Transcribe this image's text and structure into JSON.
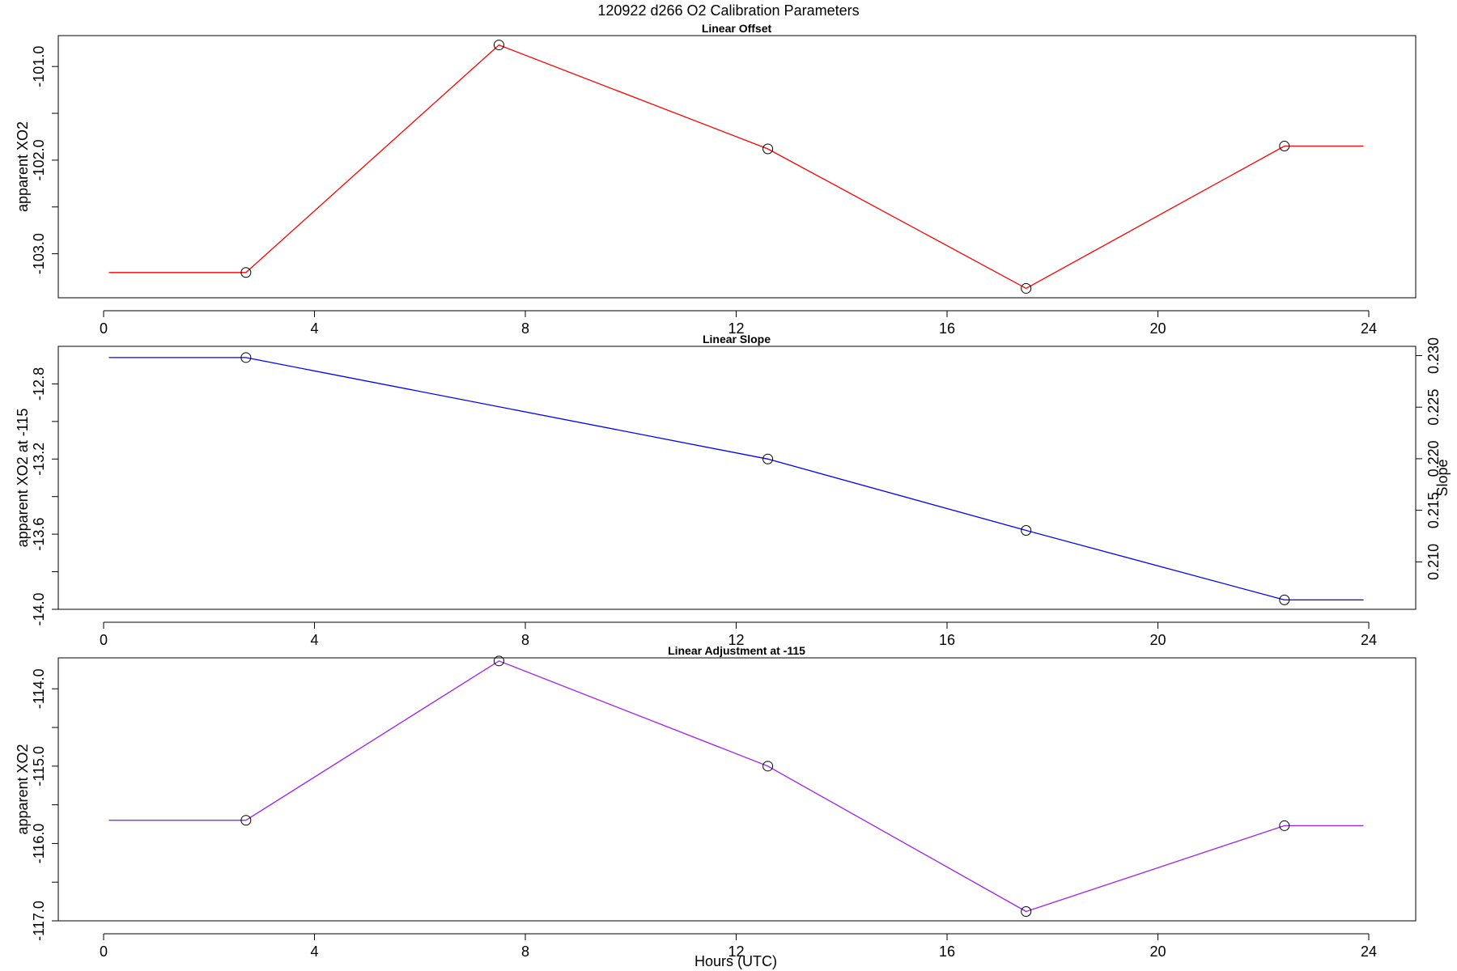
{
  "title": "120922   d266   O2 Calibration Parameters",
  "x_axis_label": "Hours (UTC)",
  "chart_data": [
    {
      "type": "line",
      "title": "Linear Offset",
      "xlabel": "",
      "ylabel": "apparent XO2",
      "xlim": [
        0,
        24
      ],
      "xticks": [
        0,
        4,
        8,
        12,
        16,
        20,
        24
      ],
      "xtick_labels": [
        "0",
        "4",
        "8",
        "12",
        "16",
        "20",
        "24"
      ],
      "ylim": [
        -103.47,
        -100.67
      ],
      "yticks": [
        -101.0,
        -101.5,
        -102.0,
        -102.5,
        -103.0
      ],
      "ytick_labels": [
        "-101.0",
        "",
        "-102.0",
        "",
        "-103.0"
      ],
      "color": "#ff0000",
      "line_x": [
        0.1,
        2.7,
        7.5,
        12.6,
        17.5,
        22.4,
        23.9
      ],
      "line_y": [
        -103.2,
        -103.2,
        -100.77,
        -101.88,
        -103.37,
        -101.85,
        -101.85
      ],
      "points_x": [
        2.7,
        7.5,
        12.6,
        17.5,
        22.4
      ],
      "points_y": [
        -103.2,
        -100.77,
        -101.88,
        -103.37,
        -101.85
      ],
      "grid": false
    },
    {
      "type": "line",
      "title": "Linear Slope",
      "xlabel": "",
      "ylabel": "apparent XO2 at -115",
      "ylabel_right": "Slope",
      "xlim": [
        0,
        24
      ],
      "xticks": [
        0,
        4,
        8,
        12,
        16,
        20,
        24
      ],
      "xtick_labels": [
        "0",
        "4",
        "8",
        "12",
        "16",
        "20",
        "24"
      ],
      "ylim": [
        -14.0,
        -12.6
      ],
      "yticks": [
        -12.8,
        -13.0,
        -13.2,
        -13.4,
        -13.6,
        -13.8,
        -14.0
      ],
      "ytick_labels": [
        "-12.8",
        "",
        "-13.2",
        "",
        "-13.6",
        "",
        "-14.0"
      ],
      "right_ylim": [
        0.2054,
        0.2309
      ],
      "right_yticks": [
        0.21,
        0.215,
        0.22,
        0.225,
        0.23
      ],
      "right_ytick_labels": [
        "0.210",
        "0.215",
        "0.220",
        "0.225",
        "0.230"
      ],
      "color": "#0000ff",
      "line_x": [
        0.1,
        2.7,
        12.6,
        17.5,
        22.4,
        23.9
      ],
      "line_y": [
        -12.66,
        -12.66,
        -13.2,
        -13.58,
        -13.95,
        -13.95
      ],
      "points_x": [
        2.7,
        12.6,
        17.5,
        22.4
      ],
      "points_y": [
        -12.66,
        -13.2,
        -13.58,
        -13.95
      ],
      "grid": false
    },
    {
      "type": "line",
      "title": "Linear Adjustment at -115",
      "xlabel": "Hours (UTC)",
      "ylabel": "apparent XO2",
      "xlim": [
        0,
        24
      ],
      "xticks": [
        0,
        4,
        8,
        12,
        16,
        20,
        24
      ],
      "xtick_labels": [
        "0",
        "4",
        "8",
        "12",
        "16",
        "20",
        "24"
      ],
      "ylim": [
        -117.0,
        -113.6
      ],
      "yticks": [
        -114.0,
        -114.5,
        -115.0,
        -115.5,
        -116.0,
        -116.5,
        -117.0
      ],
      "ytick_labels": [
        "-114.0",
        "",
        "-115.0",
        "",
        "-116.0",
        "",
        "-117.0"
      ],
      "color": "#a020f0",
      "line_x": [
        0.1,
        2.7,
        7.5,
        12.6,
        17.5,
        22.4,
        23.9
      ],
      "line_y": [
        -115.7,
        -115.7,
        -113.64,
        -115.0,
        -116.88,
        -115.77,
        -115.77
      ],
      "points_x": [
        2.7,
        7.5,
        12.6,
        17.5,
        22.4
      ],
      "points_y": [
        -115.7,
        -113.64,
        -115.0,
        -116.88,
        -115.77
      ],
      "grid": false
    }
  ]
}
